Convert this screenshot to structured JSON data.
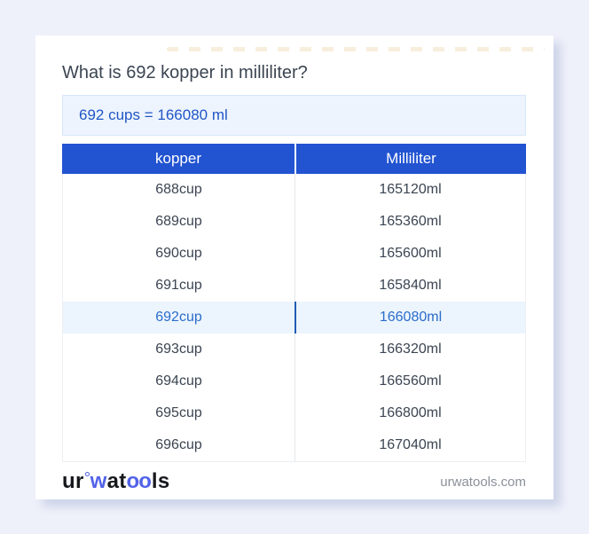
{
  "question": {
    "title": "What is 692 kopper in milliliter?"
  },
  "answer": {
    "text": "692 cups = 166080 ml"
  },
  "table": {
    "headers": [
      "kopper",
      "Milliliter"
    ],
    "highlight_index": 4,
    "rows": [
      [
        "688cup",
        "165120ml"
      ],
      [
        "689cup",
        "165360ml"
      ],
      [
        "690cup",
        "165600ml"
      ],
      [
        "691cup",
        "165840ml"
      ],
      [
        "692cup",
        "166080ml"
      ],
      [
        "693cup",
        "166320ml"
      ],
      [
        "694cup",
        "166560ml"
      ],
      [
        "695cup",
        "166800ml"
      ],
      [
        "696cup",
        "167040ml"
      ]
    ]
  },
  "footer": {
    "logo_parts": {
      "p1": "ur",
      "p2": "w",
      "p3": "at",
      "p4": "oo",
      "p5": "ls"
    },
    "domain": "urwatools.com"
  },
  "colors": {
    "page_bg": "#eff1fa",
    "header_bg": "#2253d1",
    "answer_bg": "#edf4fd",
    "accent_blue": "#2156c6",
    "highlight_bg": "#ecf5fd",
    "highlight_text": "#2b6ccb",
    "highlight_divider": "#1f5cb5",
    "logo_blue": "#5263e8",
    "body_text": "#3b4552",
    "domain_text": "#8b909a"
  }
}
